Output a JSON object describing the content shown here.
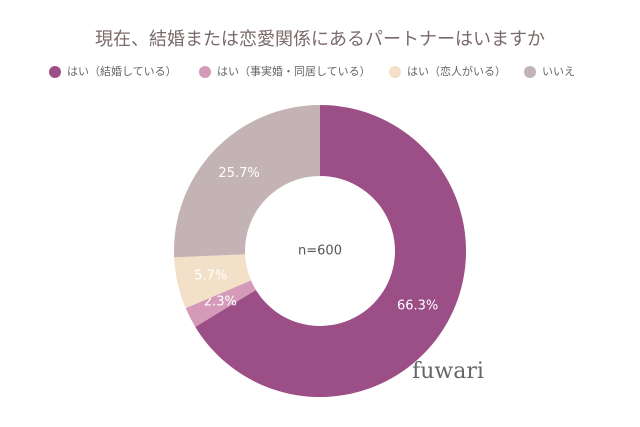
{
  "chart_data": {
    "type": "donut",
    "title": "現在、結婚または恋愛関係にあるパートナーはいますか",
    "categories": [
      "はい（結婚している）",
      "はい（事実婚・同居している）",
      "はい（恋人がいる）",
      "いいえ"
    ],
    "values": [
      66.3,
      2.3,
      5.7,
      25.7
    ],
    "value_labels": [
      "66.3%",
      "2.3%",
      "5.7%",
      "25.7%"
    ],
    "colors": [
      "#9b4f86",
      "#d49ab8",
      "#f2e0c8",
      "#c4b3b5"
    ],
    "center_label": "n=600",
    "watermark": "fuwari"
  }
}
